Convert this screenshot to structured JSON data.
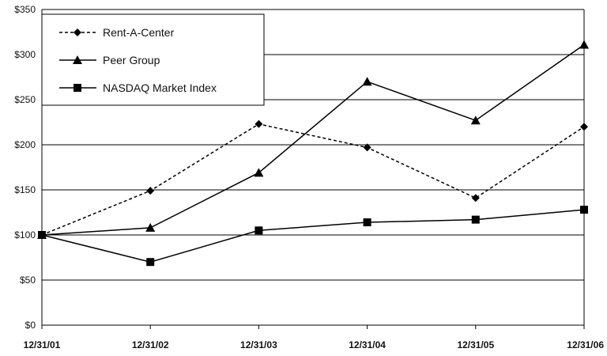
{
  "chart_data": {
    "type": "line",
    "title": "",
    "xlabel": "",
    "ylabel": "",
    "categories": [
      "12/31/01",
      "12/31/02",
      "12/31/03",
      "12/31/04",
      "12/31/05",
      "12/31/06"
    ],
    "ylim": [
      0,
      350
    ],
    "y_ticks": [
      0,
      50,
      100,
      150,
      200,
      250,
      300,
      350
    ],
    "y_tick_labels": [
      "$0",
      "$50",
      "$100",
      "$150",
      "$200",
      "$250",
      "$300",
      "$350"
    ],
    "grid": true,
    "legend_position": "top-left",
    "series": [
      {
        "name": "Rent-A-Center",
        "values": [
          100,
          149,
          223,
          197,
          141,
          220
        ],
        "marker": "diamond",
        "line_style": "dashed",
        "color": "#000000"
      },
      {
        "name": "Peer Group",
        "values": [
          100,
          108,
          169,
          270,
          227,
          311
        ],
        "marker": "triangle",
        "line_style": "solid",
        "color": "#000000"
      },
      {
        "name": "NASDAQ Market Index",
        "values": [
          100,
          70,
          105,
          114,
          117,
          128
        ],
        "marker": "square",
        "line_style": "solid",
        "color": "#000000"
      }
    ]
  }
}
